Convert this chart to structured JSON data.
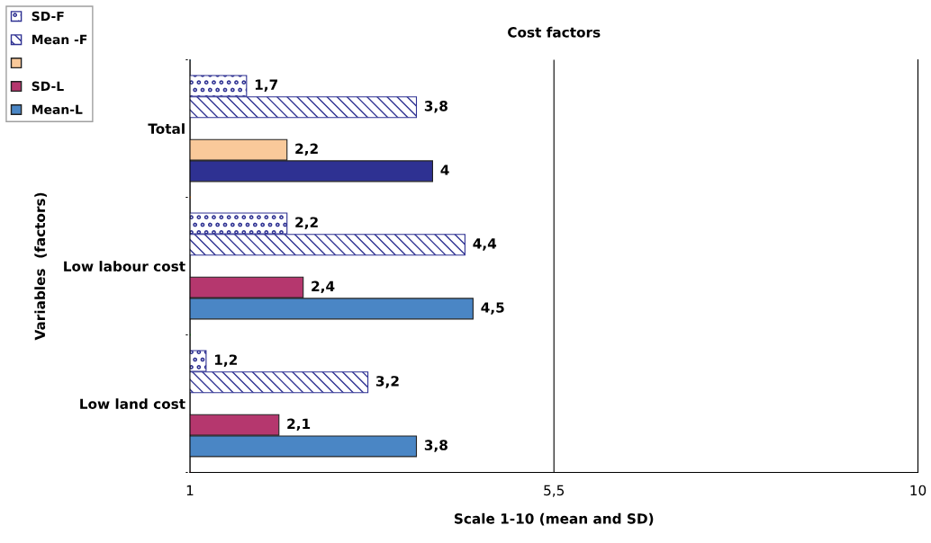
{
  "chart_data": {
    "type": "bar",
    "orientation": "horizontal",
    "title": "Cost factors",
    "xlabel": "Scale 1-10 (mean and SD)",
    "ylabel": "Variables  (factors)",
    "categories": [
      "Total",
      "Low labour cost",
      "Low land cost"
    ],
    "series": [
      {
        "name": "SD-F",
        "color": "#2e3192",
        "values": [
          1.7,
          2.2,
          1.2
        ],
        "value_labels": [
          "1,7",
          "2,2",
          "1,2"
        ]
      },
      {
        "name": "Mean -F",
        "color": "#2e3192",
        "values": [
          3.8,
          4.4,
          3.2
        ],
        "value_labels": [
          "3,8",
          "4,4",
          "3,2"
        ]
      },
      {
        "color": "#f9c99a",
        "values": [
          2.2,
          null,
          null
        ],
        "value_labels": [
          "2,2",
          null,
          null
        ]
      },
      {
        "name": "SD-L",
        "color": "#b5376e",
        "values": [
          null,
          2.4,
          2.1
        ],
        "value_labels": [
          null,
          "2,4",
          "2,1"
        ]
      },
      {
        "name": "Mean-L",
        "color": "#4a86c5",
        "colors": [
          "#2e3192",
          "#4a86c5",
          "#4a86c5"
        ],
        "values": [
          4,
          4.5,
          3.8
        ],
        "value_labels": [
          "4",
          "4,5",
          "3,8"
        ]
      }
    ],
    "xlim": [
      1,
      10
    ],
    "xticks": [
      1,
      {
        "value": 5.5,
        "label": "5,5"
      },
      10
    ],
    "grid": "x",
    "legend": "top left"
  }
}
